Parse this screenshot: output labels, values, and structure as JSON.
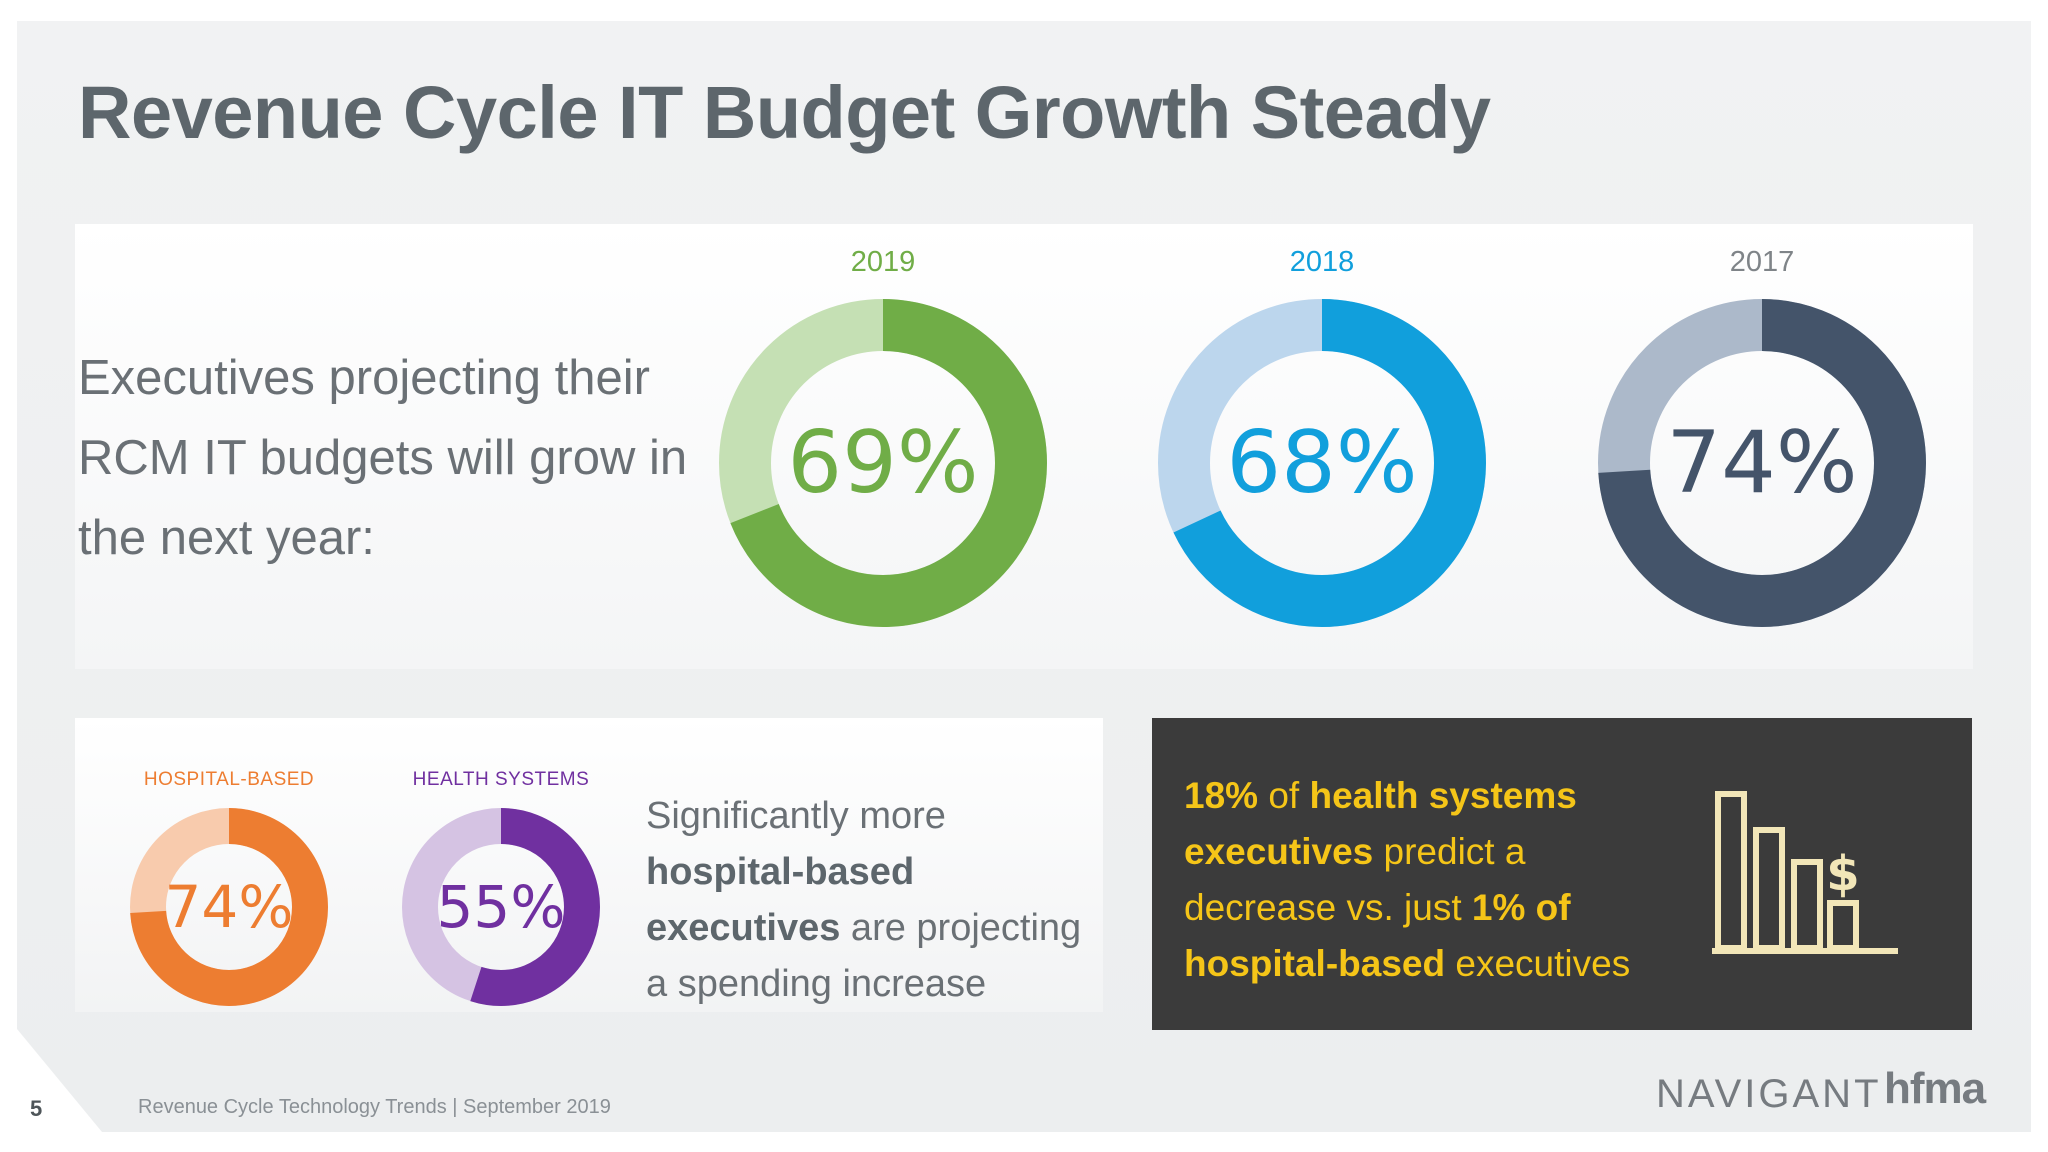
{
  "title": "Revenue Cycle IT Budget Growth Steady",
  "projection_text": "Executives projecting their RCM IT budgets will grow in the next year:",
  "colors": {
    "y2019": "#70ad47",
    "y2019_light": "#c5e0b4",
    "y2018": "#119fdc",
    "y2018_light": "#bcd6ed",
    "y2017": "#44546a",
    "y2017_light": "#acb9ca",
    "hospital": "#ed7d31",
    "hospital_light": "#f8cbad",
    "health": "#7030a0",
    "health_light": "#d5c3e3",
    "accent_yellow": "#f5c518"
  },
  "chart_data": [
    {
      "type": "pie",
      "title": "",
      "categories": [
        "2019",
        "2018",
        "2017"
      ],
      "series": [
        {
          "values": [
            69,
            68,
            74
          ]
        }
      ],
      "value_labels": [
        "69%",
        "68%",
        "74%"
      ]
    },
    {
      "type": "pie",
      "title": "",
      "categories": [
        "HOSPITAL-BASED",
        "HEALTH SYSTEMS"
      ],
      "series": [
        {
          "values": [
            74,
            55
          ]
        }
      ],
      "value_labels": [
        "74%",
        "55%"
      ]
    }
  ],
  "significantly": {
    "part1": "Significantly more ",
    "part2": "hospital-based executives",
    "part3": " are projecting a spending increase"
  },
  "callout": {
    "p1": "18%",
    "p2": " of ",
    "p3": "health systems executives",
    "p4": " predict a decrease vs. just ",
    "p5": "1% of hospital-based",
    "p6": " executives"
  },
  "icons": {
    "callout": "bar-chart-dollar-icon"
  },
  "footer": {
    "page_number": "5",
    "text": "Revenue Cycle Technology Trends  |  September 2019"
  },
  "logos": {
    "navigant": "NAVIGANT",
    "hfma": "hfma"
  }
}
